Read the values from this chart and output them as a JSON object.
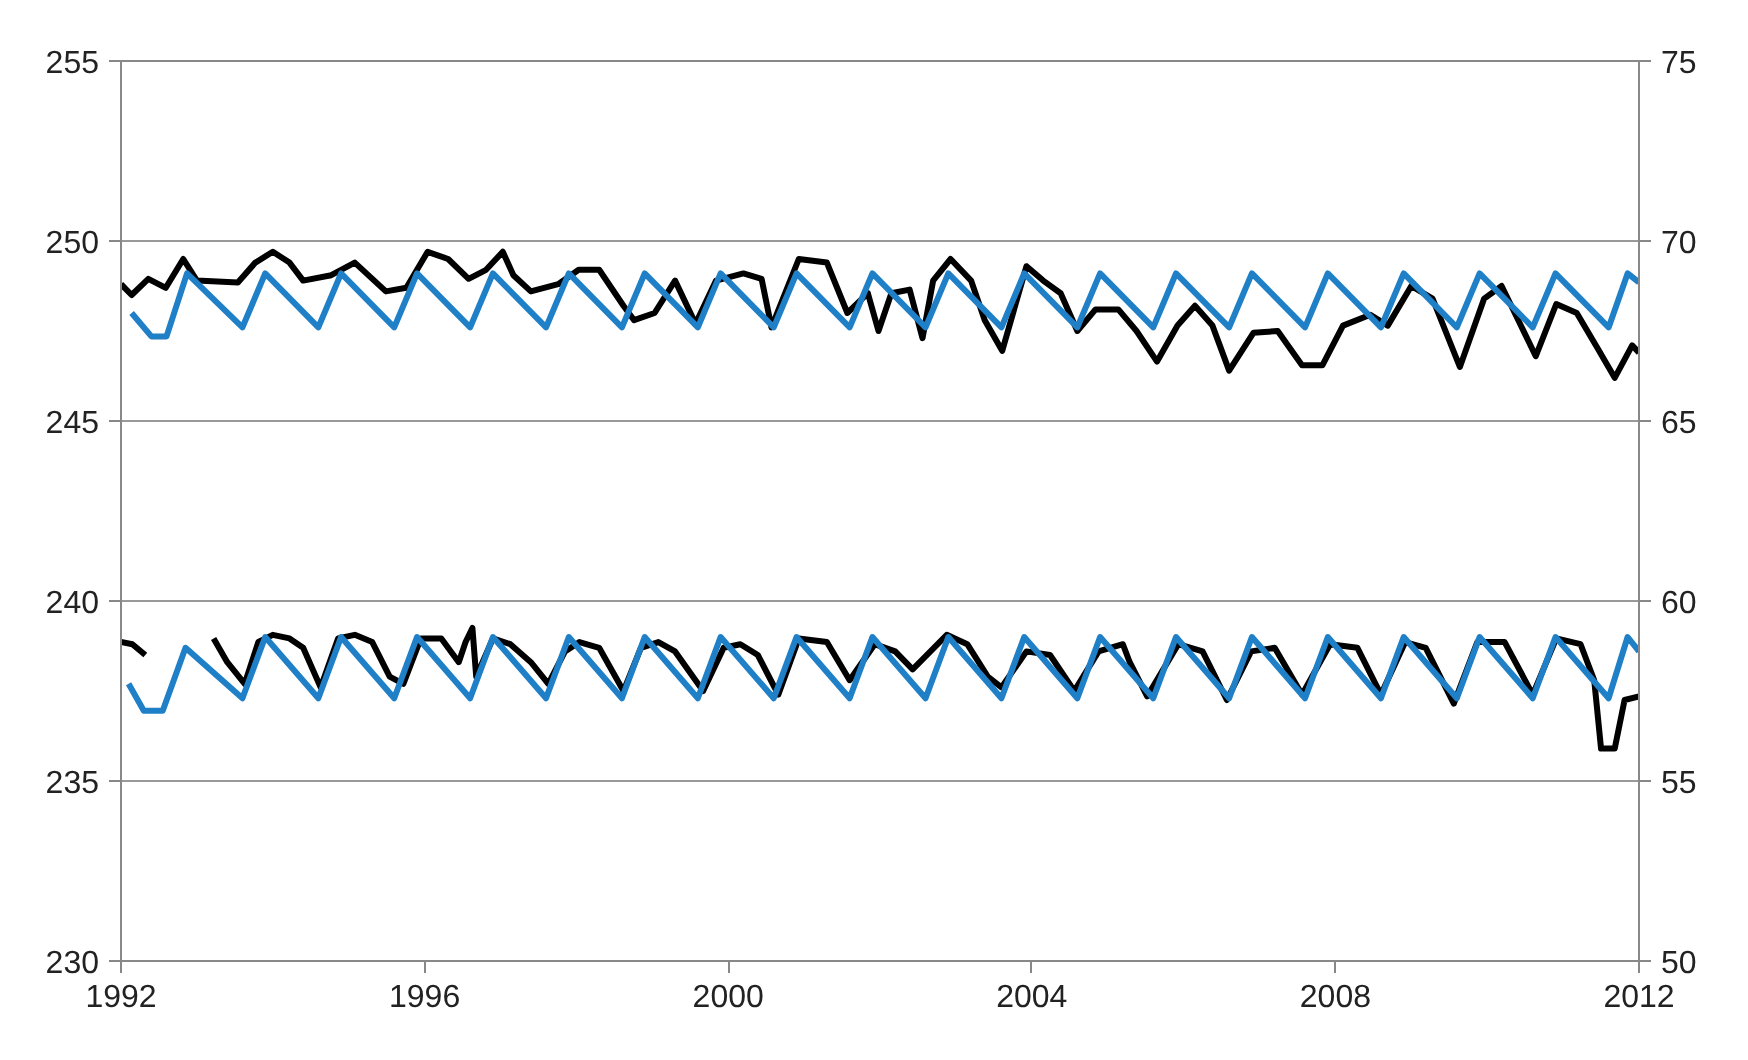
{
  "chart_data": {
    "type": "line",
    "xlim": [
      1992,
      2012
    ],
    "xticks": [
      1992,
      1996,
      2000,
      2004,
      2008,
      2012
    ],
    "ylim": [
      230,
      255
    ],
    "yticks": [
      230,
      235,
      240,
      245,
      250,
      255
    ],
    "y2lim": [
      50,
      75
    ],
    "y2ticks": [
      50,
      55,
      60,
      65,
      70,
      75
    ],
    "grid": "y",
    "marker": "none",
    "line_style": "solid",
    "series": [
      {
        "color": "#000000",
        "x": [
          1992.0,
          1992.14,
          1992.36,
          1992.59,
          1992.82,
          1993.0,
          1993.54,
          1993.77,
          1994.0,
          1994.22,
          1994.4,
          1994.77,
          1995.08,
          1995.49,
          1995.76,
          1996.04,
          1996.31,
          1996.58,
          1996.81,
          1997.03,
          1997.17,
          1997.4,
          1997.76,
          1998.03,
          1998.3,
          1998.62,
          1998.76,
          1999.03,
          1999.3,
          1999.57,
          1999.84,
          2000.2,
          2000.44,
          2000.57,
          2000.93,
          2001.3,
          2001.57,
          2001.84,
          2001.98,
          2002.15,
          2002.39,
          2002.56,
          2002.7,
          2002.93,
          2003.2,
          2003.38,
          2003.61,
          2003.93,
          2004.15,
          2004.38,
          2004.6,
          2004.84,
          2005.14,
          2005.38,
          2005.65,
          2005.92,
          2006.15,
          2006.38,
          2006.6,
          2006.92,
          2007.24,
          2007.56,
          2007.83,
          2008.1,
          2008.46,
          2008.69,
          2009.0,
          2009.28,
          2009.64,
          2009.96,
          2010.19,
          2010.41,
          2010.64,
          2010.91,
          2011.18,
          2011.46,
          2011.68,
          2011.91,
          2012.0
        ],
        "values": [
          248.8,
          248.5,
          248.95,
          248.7,
          249.5,
          248.9,
          248.85,
          249.4,
          249.7,
          249.4,
          248.9,
          249.05,
          249.4,
          248.6,
          248.7,
          249.7,
          249.5,
          248.95,
          249.2,
          249.7,
          249.05,
          248.6,
          248.8,
          249.2,
          249.2,
          248.2,
          247.8,
          248.0,
          248.9,
          247.7,
          248.9,
          249.1,
          248.95,
          247.6,
          249.5,
          249.4,
          248.0,
          248.55,
          247.5,
          248.55,
          248.65,
          247.3,
          248.9,
          249.5,
          248.9,
          247.8,
          246.95,
          249.3,
          248.9,
          248.55,
          247.5,
          248.1,
          248.1,
          247.5,
          246.65,
          247.65,
          248.2,
          247.65,
          246.4,
          247.45,
          247.5,
          246.55,
          246.55,
          247.65,
          247.95,
          247.65,
          248.75,
          248.4,
          246.5,
          248.4,
          248.75,
          247.8,
          246.8,
          248.25,
          248.0,
          247.0,
          246.2,
          247.1,
          246.9
        ]
      },
      {
        "color": "#000000",
        "x": [
          1992.0,
          1992.15,
          1992.32,
          1992.8,
          1993.22,
          1993.4,
          1993.63,
          1993.81,
          1994.0,
          1994.22,
          1994.4,
          1994.63,
          1994.86,
          1995.08,
          1995.31,
          1995.54,
          1995.72,
          1995.95,
          1996.22,
          1996.45,
          1996.54,
          1996.63,
          1996.68,
          1996.9,
          1997.13,
          1997.4,
          1997.63,
          1997.85,
          1998.04,
          1998.3,
          1998.62,
          1998.85,
          1999.08,
          1999.3,
          1999.67,
          1999.94,
          2000.16,
          2000.39,
          2000.66,
          2000.93,
          2001.3,
          2001.6,
          2001.93,
          2002.2,
          2002.43,
          2002.88,
          2003.15,
          2003.42,
          2003.6,
          2003.93,
          2004.24,
          2004.56,
          2004.88,
          2005.2,
          2005.29,
          2005.52,
          2005.93,
          2006.25,
          2006.57,
          2006.89,
          2007.2,
          2007.56,
          2007.93,
          2008.29,
          2008.6,
          2008.92,
          2009.19,
          2009.56,
          2009.87,
          2010.23,
          2010.6,
          2010.91,
          2011.23,
          2011.41,
          2011.5,
          2011.68,
          2011.81,
          2012.0
        ],
        "values": [
          238.86,
          238.8,
          238.5,
          null,
          238.96,
          238.3,
          237.7,
          238.86,
          239.06,
          238.96,
          238.7,
          237.6,
          238.96,
          239.06,
          238.86,
          237.9,
          237.7,
          238.96,
          238.96,
          238.3,
          238.86,
          239.25,
          237.9,
          238.96,
          238.8,
          238.3,
          237.7,
          238.6,
          238.86,
          238.7,
          237.5,
          238.7,
          238.86,
          238.6,
          237.5,
          238.7,
          238.8,
          238.5,
          237.4,
          238.96,
          238.86,
          237.8,
          238.8,
          238.6,
          238.1,
          239.06,
          238.8,
          237.9,
          237.6,
          238.6,
          238.5,
          237.5,
          238.6,
          238.8,
          238.3,
          237.35,
          238.8,
          238.6,
          237.25,
          238.6,
          238.7,
          237.4,
          238.8,
          238.7,
          237.4,
          238.86,
          238.7,
          237.15,
          238.86,
          238.86,
          237.4,
          238.96,
          238.8,
          237.8,
          235.9,
          235.9,
          237.25,
          237.35
        ]
      },
      {
        "color": "#1f80c8",
        "axis": "y2",
        "x": [
          1992.14,
          1992.4,
          1992.6,
          1992.87,
          1993.6,
          1993.9,
          1994.6,
          1994.9,
          1995.6,
          1995.9,
          1996.6,
          1996.9,
          1997.6,
          1997.9,
          1998.6,
          1998.9,
          1999.6,
          1999.9,
          2000.6,
          2000.9,
          2001.6,
          2001.9,
          2002.6,
          2002.9,
          2003.6,
          2003.9,
          2004.6,
          2004.9,
          2005.6,
          2005.9,
          2006.6,
          2006.9,
          2007.6,
          2007.9,
          2008.6,
          2008.9,
          2009.6,
          2009.9,
          2010.6,
          2010.9,
          2011.6,
          2011.85,
          2012.0
        ],
        "values": [
          68.0,
          67.35,
          67.35,
          69.1,
          67.6,
          69.1,
          67.6,
          69.1,
          67.6,
          69.1,
          67.6,
          69.1,
          67.6,
          69.1,
          67.6,
          69.1,
          67.6,
          69.1,
          67.6,
          69.1,
          67.6,
          69.1,
          67.6,
          69.1,
          67.6,
          69.1,
          67.6,
          69.1,
          67.6,
          69.1,
          67.6,
          69.1,
          67.6,
          69.1,
          67.6,
          69.1,
          67.6,
          69.1,
          67.6,
          69.1,
          67.6,
          69.1,
          68.85
        ]
      },
      {
        "color": "#1f80c8",
        "axis": "y2",
        "x": [
          1992.1,
          1992.3,
          1992.55,
          1992.85,
          1993.6,
          1993.9,
          1994.6,
          1994.9,
          1995.6,
          1995.9,
          1996.6,
          1996.9,
          1997.6,
          1997.9,
          1998.6,
          1998.9,
          1999.6,
          1999.9,
          2000.6,
          2000.9,
          2001.6,
          2001.9,
          2002.6,
          2002.9,
          2003.6,
          2003.9,
          2004.6,
          2004.9,
          2005.6,
          2005.9,
          2006.6,
          2006.9,
          2007.6,
          2007.9,
          2008.6,
          2008.9,
          2009.6,
          2009.9,
          2010.6,
          2010.9,
          2011.6,
          2011.85,
          2012.0
        ],
        "values": [
          57.7,
          56.95,
          56.95,
          58.7,
          57.3,
          59.0,
          57.3,
          59.0,
          57.3,
          59.0,
          57.3,
          59.0,
          57.3,
          59.0,
          57.3,
          59.0,
          57.3,
          59.0,
          57.3,
          59.0,
          57.3,
          59.0,
          57.3,
          59.0,
          57.3,
          59.0,
          57.3,
          59.0,
          57.3,
          59.0,
          57.3,
          59.0,
          57.3,
          59.0,
          57.3,
          59.0,
          57.3,
          59.0,
          57.3,
          59.0,
          57.3,
          59.0,
          58.6
        ]
      }
    ]
  }
}
